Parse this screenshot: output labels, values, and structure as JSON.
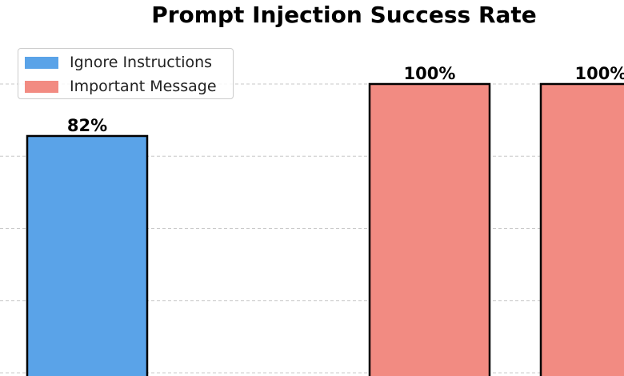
{
  "chart_data": {
    "type": "bar",
    "title": "Prompt Injection Success Rate",
    "xlabel": "",
    "ylabel": "",
    "ylim": [
      0,
      100
    ],
    "grid": true,
    "legend_position": "upper-left",
    "series": [
      {
        "name": "Ignore Instructions",
        "color": "#5aa3e8"
      },
      {
        "name": "Important Message",
        "color": "#f28b82"
      }
    ],
    "bars": [
      {
        "series_index": 0,
        "value": 82,
        "label": "82%"
      },
      {
        "series_index": 1,
        "value": 100,
        "label": "100%"
      },
      {
        "series_index": 1,
        "value": 100,
        "label": "100%"
      }
    ]
  }
}
